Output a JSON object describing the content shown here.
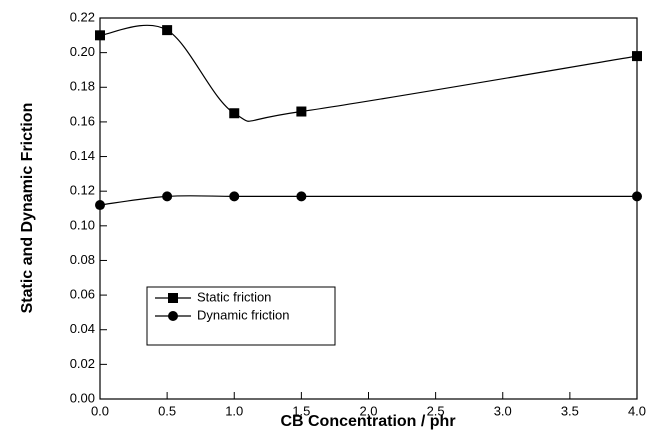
{
  "chart_data": {
    "type": "line",
    "x_label": "CB Concentration / phr",
    "y_label": "Static and Dynamic Friction",
    "xlim": [
      0,
      4
    ],
    "xticks": [
      {
        "value": 0,
        "label": "0.0"
      },
      {
        "value": 0.5,
        "label": "0.5"
      },
      {
        "value": 1,
        "label": "1.0"
      },
      {
        "value": 1.5,
        "label": "1.5"
      },
      {
        "value": 2,
        "label": "2.0"
      },
      {
        "value": 2.5,
        "label": "2.5"
      },
      {
        "value": 3,
        "label": "3.0"
      },
      {
        "value": 3.5,
        "label": "3.5"
      },
      {
        "value": 4,
        "label": "4.0"
      }
    ],
    "ylim": [
      0,
      0.22
    ],
    "yticks": [
      {
        "value": 0,
        "label": "0.00"
      },
      {
        "value": 0.02,
        "label": "0.02"
      },
      {
        "value": 0.04,
        "label": "0.04"
      },
      {
        "value": 0.06,
        "label": "0.06"
      },
      {
        "value": 0.08,
        "label": "0.08"
      },
      {
        "value": 0.1,
        "label": "0.10"
      },
      {
        "value": 0.12,
        "label": "0.12"
      },
      {
        "value": 0.14,
        "label": "0.14"
      },
      {
        "value": 0.16,
        "label": "0.16"
      },
      {
        "value": 0.18,
        "label": "0.18"
      },
      {
        "value": 0.2,
        "label": "0.20"
      },
      {
        "value": 0.22,
        "label": "0.22"
      }
    ],
    "x": [
      0,
      0.5,
      1,
      1.5,
      4
    ],
    "series": [
      {
        "name": "Static friction",
        "color": "#000000",
        "marker": "square",
        "values": [
          0.21,
          0.213,
          0.165,
          0.166,
          0.198
        ]
      },
      {
        "name": "Dynamic friction",
        "color": "#000000",
        "marker": "circle",
        "values": [
          0.112,
          0.117,
          0.117,
          0.117,
          0.117
        ]
      }
    ],
    "smooth": true,
    "legend": "lower-left"
  }
}
